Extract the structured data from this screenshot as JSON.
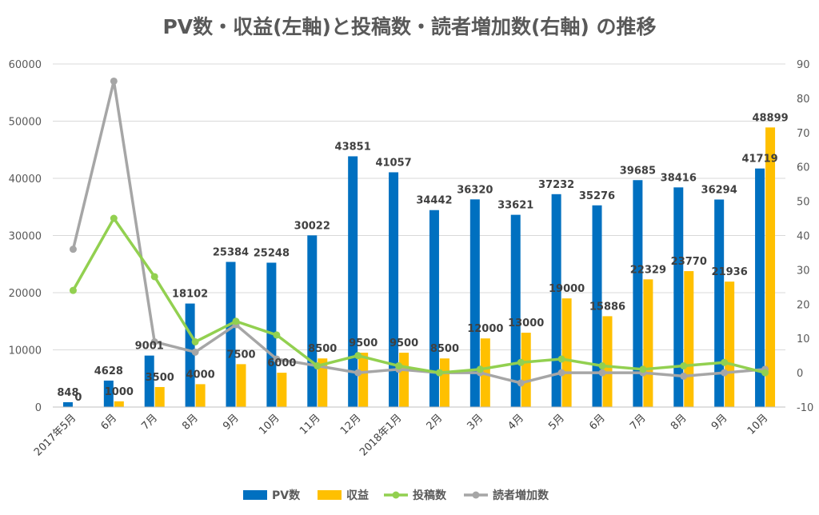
{
  "chart_data": {
    "type": "bar",
    "title": "PV数・収益(左軸)と投稿数・読者増加数(右軸) の推移",
    "categories": [
      "2017年5月",
      "6月",
      "7月",
      "8月",
      "9月",
      "10月",
      "11月",
      "12月",
      "2018年1月",
      "2月",
      "3月",
      "4月",
      "5月",
      "6月",
      "7月",
      "8月",
      "9月",
      "10月"
    ],
    "y_left": {
      "min": 0,
      "max": 60000,
      "step": 10000,
      "ticks": [
        "0",
        "10000",
        "20000",
        "30000",
        "40000",
        "50000",
        "60000"
      ]
    },
    "y_right": {
      "min": -10,
      "max": 90,
      "step": 10,
      "ticks": [
        "-10",
        "0",
        "10",
        "20",
        "30",
        "40",
        "50",
        "60",
        "70",
        "80",
        "90"
      ]
    },
    "grid": true,
    "legend_position": "bottom",
    "series": [
      {
        "name": "PV数",
        "kind": "bar",
        "axis": "left",
        "color": "#0070C0",
        "values": [
          848,
          4628,
          9001,
          18102,
          25384,
          25248,
          30022,
          43851,
          41057,
          34442,
          36320,
          33621,
          37232,
          35276,
          39685,
          38416,
          36294,
          41719
        ],
        "labels": [
          "848",
          "4628",
          "9001",
          "18102",
          "25384",
          "25248",
          "30022",
          "43851",
          "41057",
          "34442",
          "36320",
          "33621",
          "37232",
          "35276",
          "39685",
          "38416",
          "36294",
          "41719"
        ]
      },
      {
        "name": "収益",
        "kind": "bar",
        "axis": "left",
        "color": "#FFC000",
        "values": [
          0,
          1000,
          3500,
          4000,
          7500,
          6000,
          8500,
          9500,
          9500,
          8500,
          12000,
          13000,
          19000,
          15886,
          22329,
          23770,
          21936,
          48899
        ],
        "labels": [
          "0",
          "1000",
          "3500",
          "4000",
          "7500",
          "6000",
          "8500",
          "9500",
          "9500",
          "8500",
          "12000",
          "13000",
          "19000",
          "15886",
          "22329",
          "23770",
          "21936",
          "48899"
        ]
      },
      {
        "name": "投稿数",
        "kind": "line",
        "axis": "right",
        "color": "#92D050",
        "values": [
          24,
          45,
          28,
          9,
          15,
          11,
          2,
          5,
          2,
          0,
          1,
          3,
          4,
          2,
          1,
          2,
          3,
          0
        ]
      },
      {
        "name": "読者増加数",
        "kind": "line",
        "axis": "right",
        "color": "#A6A6A6",
        "values": [
          36,
          85,
          9,
          6,
          14,
          4,
          2,
          0,
          1,
          0,
          0,
          -3,
          0,
          0,
          0,
          -1,
          0,
          1
        ]
      }
    ]
  }
}
